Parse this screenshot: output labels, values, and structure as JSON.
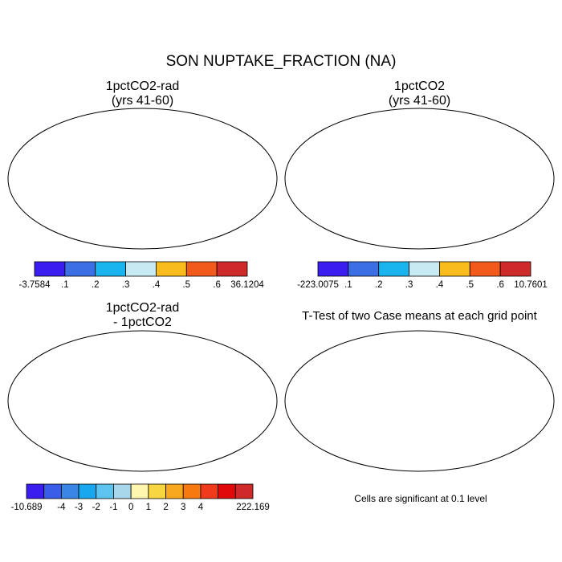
{
  "title": "SON NUPTAKE_FRACTION (NA)",
  "footnote": "Cells are significant at 0.1 level",
  "chart_data": [
    {
      "type": "heatmap",
      "panel": "top-left",
      "title_lines": [
        "1pctCO2-rad",
        "(yrs 41-60)"
      ],
      "colorbar": {
        "colors": [
          "#3a1ef0",
          "#3b6fe3",
          "#19b4ee",
          "#c7e9f2",
          "#f8bd1c",
          "#f25a1c",
          "#cf2a2a"
        ],
        "labels": [
          "-3.7584",
          ".1",
          ".2",
          ".3",
          ".4",
          ".5",
          ".6",
          "36.1204"
        ]
      }
    },
    {
      "type": "heatmap",
      "panel": "top-right",
      "title_lines": [
        "1pctCO2",
        "(yrs 41-60)"
      ],
      "colorbar": {
        "colors": [
          "#3a1ef0",
          "#3b6fe3",
          "#19b4ee",
          "#c7e9f2",
          "#f8bd1c",
          "#f25a1c",
          "#cf2a2a"
        ],
        "labels": [
          "-223.0075",
          ".1",
          ".2",
          ".3",
          ".4",
          ".5",
          ".6",
          "10.7601"
        ]
      }
    },
    {
      "type": "heatmap",
      "panel": "bottom-left",
      "title_lines": [
        "1pctCO2-rad",
        "- 1pctCO2"
      ],
      "colorbar": {
        "colors": [
          "#3a1ef0",
          "#3b5ee8",
          "#3a86e6",
          "#19a8ee",
          "#5cc4ef",
          "#a8d6ea",
          "#fff7b0",
          "#f8d640",
          "#f8a81c",
          "#f67a10",
          "#ef3b1c",
          "#e10a0a",
          "#cf2a2a"
        ],
        "labels": [
          "-10.689",
          "-4",
          "-3",
          "-2",
          "-1",
          "0",
          "1",
          "2",
          "3",
          "4",
          "222.169"
        ]
      }
    },
    {
      "type": "heatmap",
      "panel": "bottom-right",
      "title_lines": [
        "T-Test of two Case means at each grid point"
      ]
    }
  ]
}
